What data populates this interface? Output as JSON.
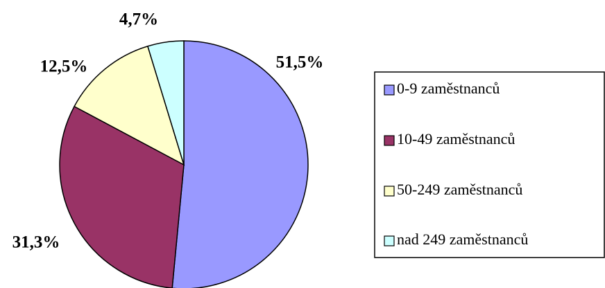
{
  "chart_data": {
    "type": "pie",
    "categories": [
      "0-9 zaměstnanců",
      "10-49 zaměstnanců",
      "50-249 zaměstnanců",
      "nad 249 zaměstnanců"
    ],
    "values": [
      51.5,
      31.3,
      12.5,
      4.7
    ],
    "value_labels": [
      "51,5%",
      "31,3%",
      "12,5%",
      "4,7%"
    ],
    "colors": [
      "#9999ff",
      "#993366",
      "#ffffcc",
      "#ccffff"
    ]
  }
}
